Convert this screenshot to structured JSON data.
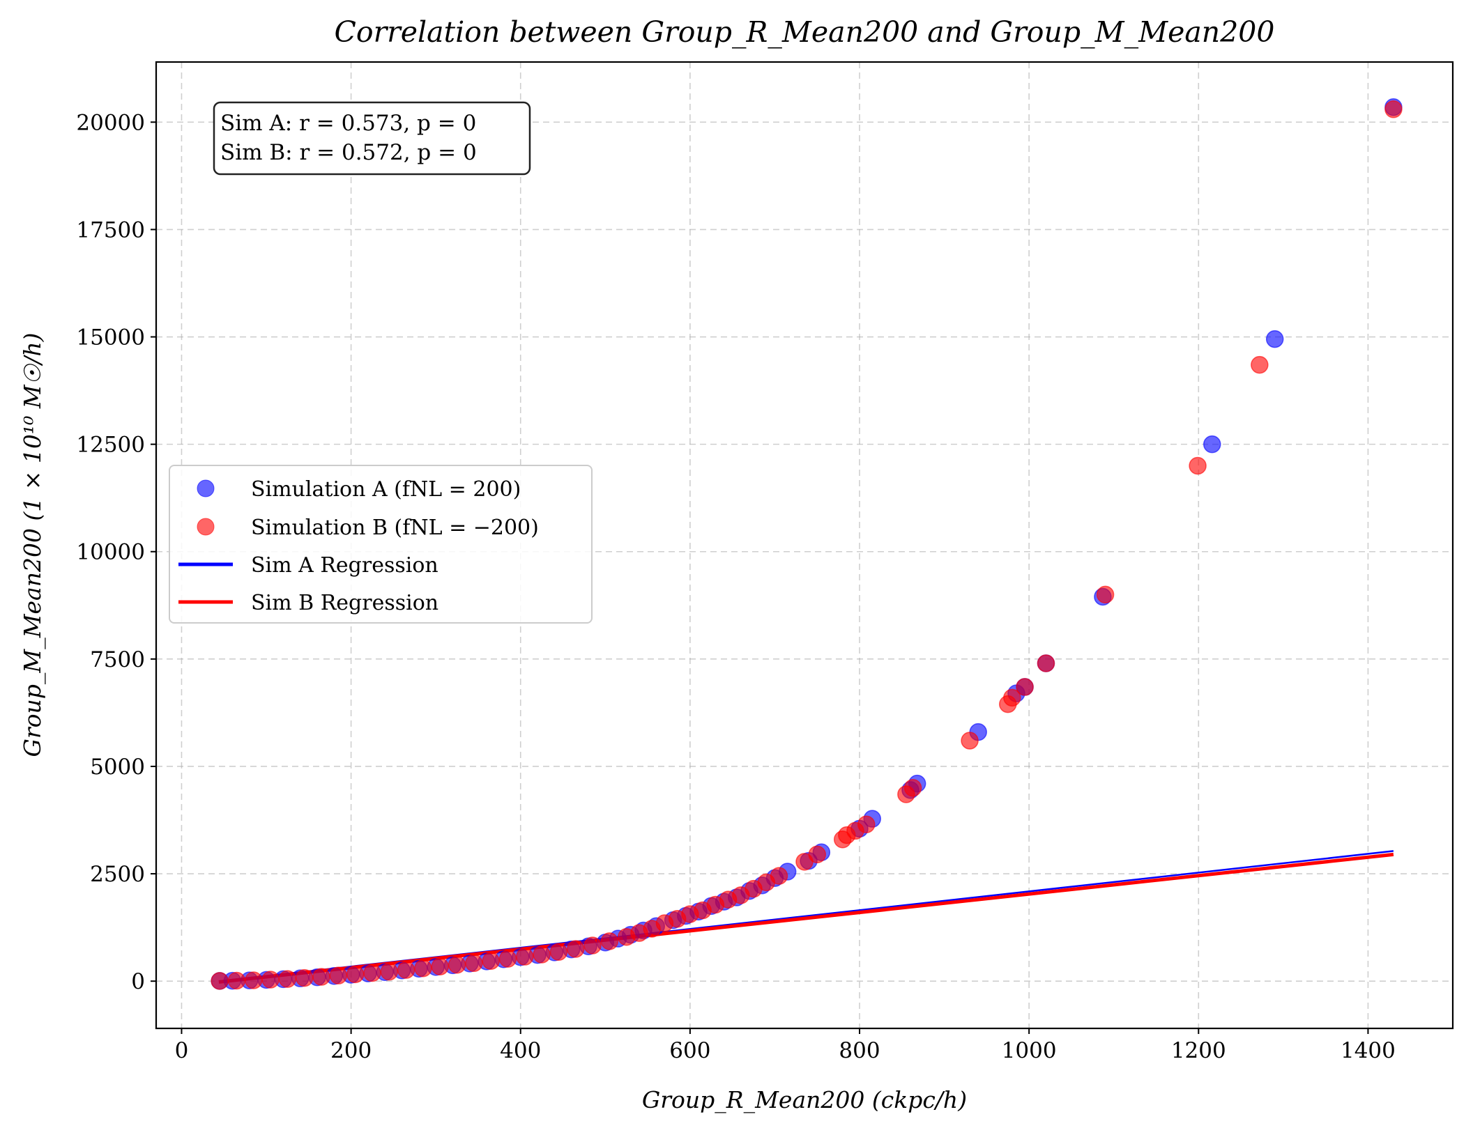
{
  "chart_data": {
    "type": "scatter",
    "title": "Correlation between Group_R_Mean200 and Group_M_Mean200",
    "xlabel": "Group_R_Mean200 (ckpc/h)",
    "ylabel": "Group_M_Mean200 (1 × 10¹⁰ M☉/h)",
    "xlim": [
      -30,
      1500
    ],
    "ylim": [
      -1100,
      21400
    ],
    "xticks": [
      0,
      200,
      400,
      600,
      800,
      1000,
      1200,
      1400
    ],
    "yticks": [
      0,
      2500,
      5000,
      7500,
      10000,
      12500,
      15000,
      17500,
      20000
    ],
    "grid": true,
    "legend_position": "center-left",
    "stats_box": {
      "line_a": "Sim A: r = 0.573, p = 0",
      "line_b": "Sim B: r = 0.572, p = 0"
    },
    "series": [
      {
        "name": "Simulation A (fNL = 200)",
        "kind": "scatter",
        "color": "#0000ff",
        "alpha": 0.6,
        "points": [
          [
            1430,
            20350
          ],
          [
            1290,
            14950
          ],
          [
            1216,
            12500
          ],
          [
            1087,
            8950
          ],
          [
            1020,
            7400
          ],
          [
            995,
            6850
          ],
          [
            985,
            6700
          ],
          [
            940,
            5800
          ],
          [
            868,
            4600
          ],
          [
            860,
            4450
          ],
          [
            815,
            3780
          ],
          [
            800,
            3550
          ],
          [
            755,
            3000
          ],
          [
            740,
            2800
          ],
          [
            715,
            2550
          ],
          [
            700,
            2400
          ],
          [
            685,
            2230
          ],
          [
            670,
            2100
          ],
          [
            655,
            1950
          ],
          [
            640,
            1850
          ],
          [
            625,
            1750
          ],
          [
            610,
            1620
          ],
          [
            595,
            1520
          ],
          [
            580,
            1420
          ],
          [
            560,
            1280
          ],
          [
            545,
            1180
          ],
          [
            530,
            1080
          ],
          [
            515,
            990
          ],
          [
            500,
            900
          ],
          [
            480,
            810
          ],
          [
            460,
            740
          ],
          [
            440,
            670
          ],
          [
            420,
            610
          ],
          [
            400,
            560
          ],
          [
            380,
            510
          ],
          [
            360,
            460
          ],
          [
            340,
            410
          ],
          [
            320,
            370
          ],
          [
            300,
            330
          ],
          [
            280,
            290
          ],
          [
            260,
            250
          ],
          [
            240,
            210
          ],
          [
            220,
            180
          ],
          [
            200,
            150
          ],
          [
            180,
            120
          ],
          [
            160,
            90
          ],
          [
            140,
            65
          ],
          [
            120,
            45
          ],
          [
            100,
            30
          ],
          [
            80,
            18
          ],
          [
            60,
            10
          ],
          [
            45,
            5
          ]
        ]
      },
      {
        "name": "Simulation B (fNL = −200)",
        "kind": "scatter",
        "color": "#ff0000",
        "alpha": 0.6,
        "points": [
          [
            1430,
            20300
          ],
          [
            1272,
            14350
          ],
          [
            1199,
            12000
          ],
          [
            1090,
            9000
          ],
          [
            1020,
            7400
          ],
          [
            995,
            6850
          ],
          [
            980,
            6600
          ],
          [
            975,
            6450
          ],
          [
            930,
            5600
          ],
          [
            863,
            4500
          ],
          [
            855,
            4350
          ],
          [
            808,
            3650
          ],
          [
            795,
            3500
          ],
          [
            785,
            3400
          ],
          [
            780,
            3300
          ],
          [
            750,
            2950
          ],
          [
            735,
            2780
          ],
          [
            705,
            2450
          ],
          [
            690,
            2300
          ],
          [
            675,
            2150
          ],
          [
            660,
            2000
          ],
          [
            645,
            1900
          ],
          [
            630,
            1780
          ],
          [
            615,
            1650
          ],
          [
            600,
            1560
          ],
          [
            585,
            1450
          ],
          [
            570,
            1350
          ],
          [
            555,
            1220
          ],
          [
            540,
            1120
          ],
          [
            525,
            1030
          ],
          [
            505,
            930
          ],
          [
            485,
            830
          ],
          [
            465,
            750
          ],
          [
            445,
            680
          ],
          [
            425,
            620
          ],
          [
            405,
            570
          ],
          [
            385,
            520
          ],
          [
            365,
            470
          ],
          [
            345,
            420
          ],
          [
            325,
            380
          ],
          [
            305,
            340
          ],
          [
            285,
            300
          ],
          [
            265,
            260
          ],
          [
            245,
            220
          ],
          [
            225,
            190
          ],
          [
            205,
            160
          ],
          [
            185,
            130
          ],
          [
            165,
            100
          ],
          [
            145,
            75
          ],
          [
            125,
            50
          ],
          [
            105,
            35
          ],
          [
            85,
            20
          ],
          [
            65,
            12
          ],
          [
            45,
            5
          ]
        ]
      },
      {
        "name": "Sim A Regression",
        "kind": "line",
        "color": "#0000ff",
        "x": [
          44,
          1430
        ],
        "y": [
          0,
          3030
        ]
      },
      {
        "name": "Sim B Regression",
        "kind": "line",
        "color": "#ff0000",
        "x": [
          44,
          1430
        ],
        "y": [
          -20,
          2950
        ]
      }
    ]
  }
}
